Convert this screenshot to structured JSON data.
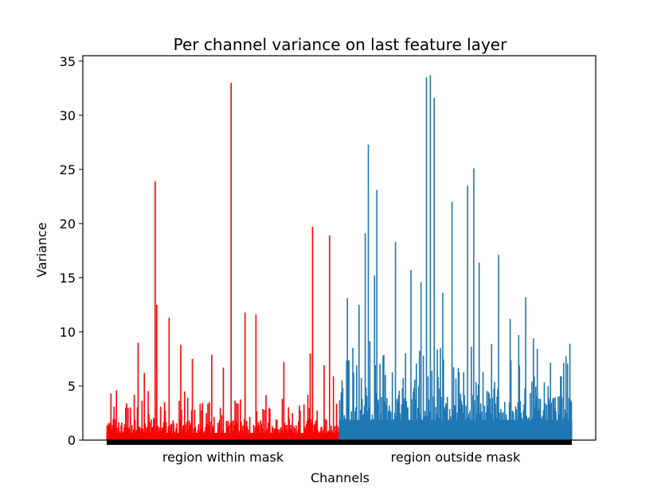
{
  "chart_data": {
    "type": "bar",
    "title": "Per channel variance on last feature layer",
    "xlabel": "Channels",
    "ylabel": "Variance",
    "ylim": [
      0,
      35.5
    ],
    "y_ticks": [
      0,
      5,
      10,
      15,
      20,
      25,
      30,
      35
    ],
    "x_tick_labels": [
      "region within mask",
      "region outside mask"
    ],
    "grid": false,
    "legend": "none",
    "series": [
      {
        "region": "within",
        "color": "#ff0000",
        "channel_count": 300,
        "peaks": [
          {
            "channel": 5,
            "value": 4.3
          },
          {
            "channel": 12,
            "value": 4.6
          },
          {
            "channel": 25,
            "value": 3.4
          },
          {
            "channel": 40,
            "value": 9.0
          },
          {
            "channel": 48,
            "value": 6.2
          },
          {
            "channel": 62,
            "value": 23.9
          },
          {
            "channel": 64,
            "value": 12.5
          },
          {
            "channel": 80,
            "value": 11.3
          },
          {
            "channel": 95,
            "value": 8.8
          },
          {
            "channel": 110,
            "value": 7.5
          },
          {
            "channel": 135,
            "value": 7.9
          },
          {
            "channel": 150,
            "value": 6.7
          },
          {
            "channel": 160,
            "value": 33.0
          },
          {
            "channel": 178,
            "value": 11.8
          },
          {
            "channel": 192,
            "value": 11.6
          },
          {
            "channel": 228,
            "value": 7.2
          },
          {
            "channel": 262,
            "value": 8.0
          },
          {
            "channel": 265,
            "value": 19.7
          },
          {
            "channel": 280,
            "value": 6.9
          },
          {
            "channel": 287,
            "value": 18.9
          },
          {
            "channel": 292,
            "value": 5.9
          }
        ]
      },
      {
        "region": "outside",
        "color": "#1f77b4",
        "channel_count": 300,
        "peaks": [
          {
            "channel": 310,
            "value": 13.1
          },
          {
            "channel": 325,
            "value": 12.5
          },
          {
            "channel": 333,
            "value": 19.1
          },
          {
            "channel": 337,
            "value": 27.3
          },
          {
            "channel": 345,
            "value": 15.2
          },
          {
            "channel": 348,
            "value": 23.1
          },
          {
            "channel": 372,
            "value": 18.3
          },
          {
            "channel": 392,
            "value": 15.7
          },
          {
            "channel": 405,
            "value": 14.6
          },
          {
            "channel": 412,
            "value": 33.5
          },
          {
            "channel": 417,
            "value": 33.7
          },
          {
            "channel": 422,
            "value": 31.6
          },
          {
            "channel": 433,
            "value": 13.6
          },
          {
            "channel": 445,
            "value": 22.0
          },
          {
            "channel": 465,
            "value": 23.5
          },
          {
            "channel": 473,
            "value": 25.1
          },
          {
            "channel": 480,
            "value": 16.4
          },
          {
            "channel": 505,
            "value": 17.1
          },
          {
            "channel": 520,
            "value": 11.2
          },
          {
            "channel": 540,
            "value": 13.2
          },
          {
            "channel": 550,
            "value": 9.4
          }
        ]
      }
    ]
  }
}
